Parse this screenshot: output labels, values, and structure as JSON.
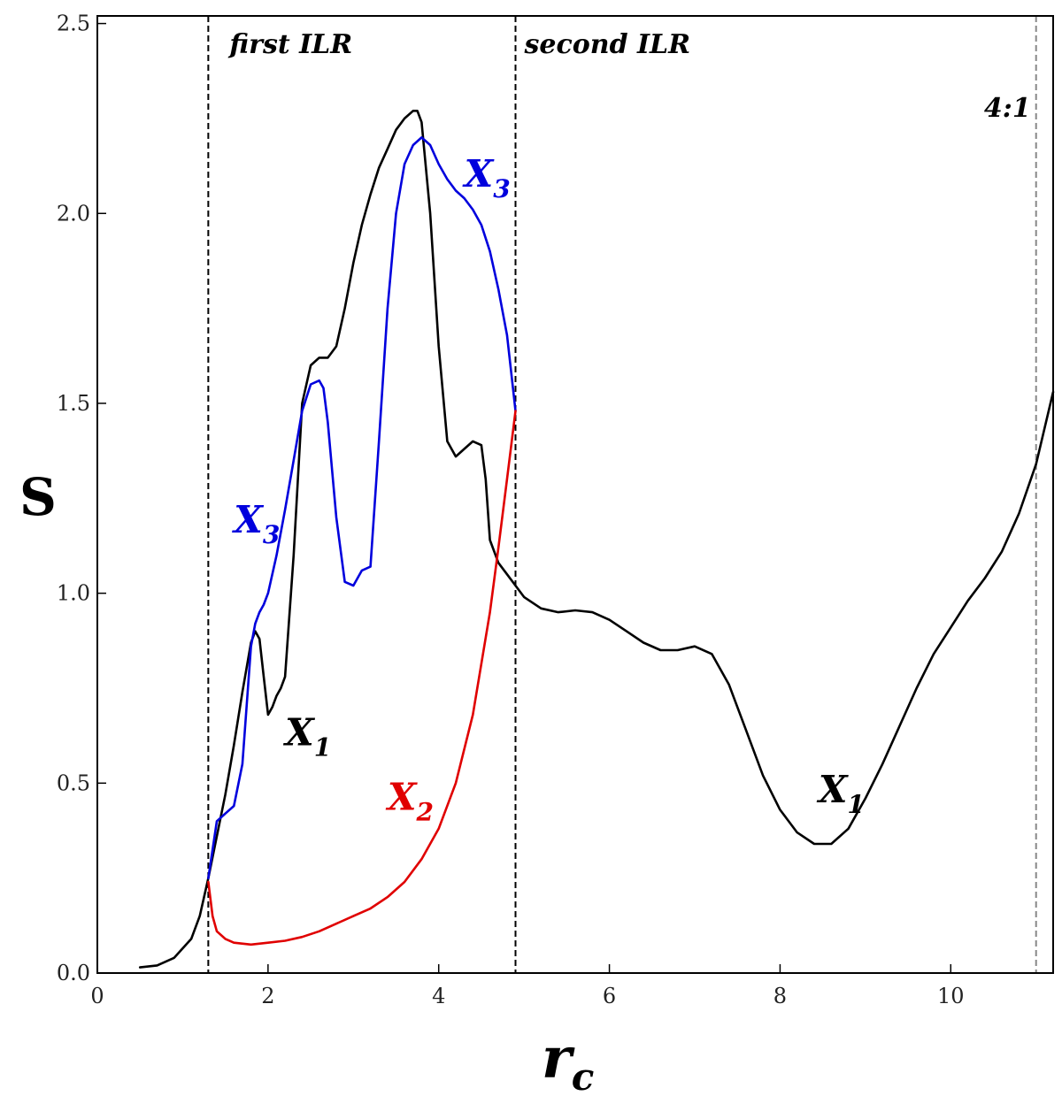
{
  "chart_data": {
    "type": "line",
    "title": "",
    "xlabel": "r",
    "xlabel_sub": "c",
    "ylabel": "S",
    "xlim": [
      0,
      11.2
    ],
    "ylim": [
      0,
      2.52
    ],
    "x_ticks": [
      0,
      2,
      4,
      6,
      8,
      10
    ],
    "y_ticks": [
      0.0,
      0.5,
      1.0,
      1.5,
      2.0,
      2.5
    ],
    "x_tick_labels": [
      "0",
      "2",
      "4",
      "6",
      "8",
      "10"
    ],
    "y_tick_labels": [
      "0.0",
      "0.5",
      "1.0",
      "1.5",
      "2.0",
      "2.5"
    ],
    "grid": false,
    "vlines": [
      {
        "x": 1.3,
        "color": "#000000",
        "label": "first ILR"
      },
      {
        "x": 4.9,
        "color": "#000000",
        "label": "second ILR"
      },
      {
        "x": 11.0,
        "color": "#888888",
        "label": "4:1"
      }
    ],
    "series": [
      {
        "name": "X1",
        "color": "#000000",
        "x": [
          0.5,
          0.7,
          0.9,
          1.1,
          1.2,
          1.3,
          1.4,
          1.5,
          1.6,
          1.7,
          1.8,
          1.85,
          1.9,
          1.95,
          2.0,
          2.05,
          2.1,
          2.15,
          2.2,
          2.3,
          2.4,
          2.5,
          2.6,
          2.7,
          2.8,
          2.9,
          3.0,
          3.1,
          3.2,
          3.3,
          3.4,
          3.5,
          3.6,
          3.7,
          3.75,
          3.8,
          3.9,
          4.0,
          4.1,
          4.2,
          4.3,
          4.4,
          4.5,
          4.55,
          4.6,
          4.7,
          4.8,
          4.9,
          5.0,
          5.2,
          5.4,
          5.6,
          5.8,
          6.0,
          6.2,
          6.4,
          6.6,
          6.8,
          7.0,
          7.2,
          7.4,
          7.6,
          7.8,
          8.0,
          8.2,
          8.4,
          8.6,
          8.8,
          9.0,
          9.2,
          9.4,
          9.6,
          9.8,
          10.0,
          10.2,
          10.4,
          10.6,
          10.8,
          11.0,
          11.2
        ],
        "y": [
          0.015,
          0.02,
          0.04,
          0.09,
          0.15,
          0.25,
          0.36,
          0.47,
          0.6,
          0.74,
          0.87,
          0.9,
          0.88,
          0.78,
          0.68,
          0.7,
          0.73,
          0.75,
          0.78,
          1.1,
          1.5,
          1.6,
          1.62,
          1.62,
          1.65,
          1.75,
          1.87,
          1.97,
          2.05,
          2.12,
          2.17,
          2.22,
          2.25,
          2.27,
          2.27,
          2.24,
          2.0,
          1.65,
          1.4,
          1.36,
          1.38,
          1.4,
          1.39,
          1.3,
          1.14,
          1.08,
          1.05,
          1.02,
          0.99,
          0.96,
          0.95,
          0.955,
          0.95,
          0.93,
          0.9,
          0.87,
          0.85,
          0.85,
          0.86,
          0.84,
          0.76,
          0.64,
          0.52,
          0.43,
          0.37,
          0.34,
          0.34,
          0.38,
          0.46,
          0.55,
          0.65,
          0.75,
          0.84,
          0.91,
          0.98,
          1.04,
          1.11,
          1.21,
          1.34,
          1.53
        ]
      },
      {
        "name": "X3",
        "color": "#0000dd",
        "x": [
          1.3,
          1.4,
          1.5,
          1.6,
          1.7,
          1.8,
          1.85,
          1.9,
          1.95,
          2.0,
          2.1,
          2.2,
          2.3,
          2.4,
          2.5,
          2.6,
          2.65,
          2.7,
          2.8,
          2.9,
          3.0,
          3.1,
          3.2,
          3.3,
          3.4,
          3.5,
          3.6,
          3.7,
          3.8,
          3.9,
          4.0,
          4.1,
          4.2,
          4.3,
          4.4,
          4.5,
          4.6,
          4.7,
          4.8,
          4.9
        ],
        "y": [
          0.25,
          0.4,
          0.42,
          0.44,
          0.55,
          0.86,
          0.92,
          0.95,
          0.97,
          1.0,
          1.1,
          1.22,
          1.35,
          1.48,
          1.55,
          1.56,
          1.54,
          1.45,
          1.2,
          1.03,
          1.02,
          1.06,
          1.07,
          1.4,
          1.75,
          2.0,
          2.13,
          2.18,
          2.2,
          2.18,
          2.13,
          2.09,
          2.06,
          2.04,
          2.01,
          1.97,
          1.9,
          1.8,
          1.68,
          1.48
        ]
      },
      {
        "name": "X2",
        "color": "#e00000",
        "x": [
          1.3,
          1.35,
          1.4,
          1.5,
          1.6,
          1.8,
          2.0,
          2.2,
          2.4,
          2.6,
          2.8,
          3.0,
          3.2,
          3.4,
          3.6,
          3.8,
          4.0,
          4.2,
          4.4,
          4.6,
          4.7,
          4.8,
          4.9
        ],
        "y": [
          0.24,
          0.15,
          0.11,
          0.09,
          0.08,
          0.075,
          0.08,
          0.085,
          0.095,
          0.11,
          0.13,
          0.15,
          0.17,
          0.2,
          0.24,
          0.3,
          0.38,
          0.5,
          0.68,
          0.95,
          1.12,
          1.3,
          1.48
        ]
      }
    ],
    "annotations": [
      {
        "text": "X",
        "sub": "3",
        "color": "#0000dd",
        "x": 4.3,
        "y": 2.07
      },
      {
        "text": "X",
        "sub": "3",
        "color": "#0000dd",
        "x": 1.6,
        "y": 1.16
      },
      {
        "text": "X",
        "sub": "1",
        "color": "#000000",
        "x": 2.2,
        "y": 0.6
      },
      {
        "text": "X",
        "sub": "2",
        "color": "#e00000",
        "x": 3.4,
        "y": 0.43
      },
      {
        "text": "X",
        "sub": "1",
        "color": "#000000",
        "x": 8.45,
        "y": 0.45
      }
    ]
  }
}
